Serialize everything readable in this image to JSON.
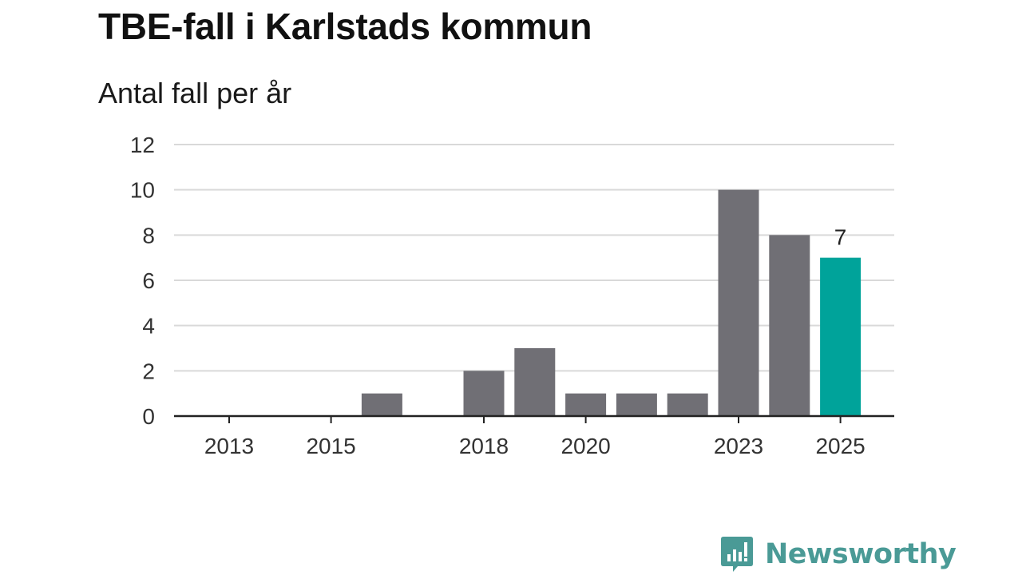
{
  "header": {
    "title": "TBE-fall i Karlstads kommun",
    "subtitle": "Antal fall per år"
  },
  "chart_data": {
    "type": "bar",
    "title": "TBE-fall i Karlstads kommun",
    "subtitle": "Antal fall per år",
    "xlabel": "",
    "ylabel": "",
    "categories": [
      "2013",
      "2014",
      "2015",
      "2016",
      "2017",
      "2018",
      "2019",
      "2020",
      "2021",
      "2022",
      "2023",
      "2024",
      "2025"
    ],
    "values": [
      0,
      0,
      0,
      1,
      0,
      2,
      3,
      1,
      1,
      1,
      10,
      8,
      7
    ],
    "x_tick_labels": [
      "2013",
      "2015",
      "2018",
      "2020",
      "2023",
      "2025"
    ],
    "y_ticks": [
      0,
      2,
      4,
      6,
      8,
      10,
      12
    ],
    "ylim": [
      0,
      12
    ],
    "grid": true,
    "highlight_category": "2025",
    "data_labels": [
      {
        "category": "2025",
        "text": "7"
      }
    ],
    "colors": {
      "bar": "#706f75",
      "highlight": "#00a39a",
      "grid": "#d9d9d9",
      "axis": "#222222"
    }
  },
  "brand": {
    "name": "Newsworthy",
    "logo_icon": "newsworthy-chart-bubble-icon",
    "color": "#4a9a96"
  }
}
